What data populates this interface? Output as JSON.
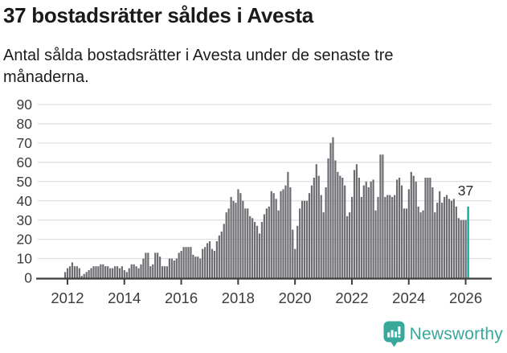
{
  "header": {
    "title": "37 bostadsrätter såldes i Avesta",
    "subtitle": "Antal sålda bostadsrätter i Avesta under de senaste tre månaderna."
  },
  "chart_data": {
    "type": "bar",
    "title": "37 bostadsrätter såldes i Avesta",
    "xlabel": "",
    "ylabel": "",
    "start_month": "2011-12",
    "end_month": "2026-02",
    "frequency": "monthly (rolling 3-month sales count)",
    "values": [
      3,
      5,
      6,
      8,
      6,
      6,
      5,
      1,
      2,
      3,
      4,
      5,
      6,
      6,
      6,
      7,
      7,
      6,
      6,
      5,
      5,
      6,
      6,
      5,
      6,
      4,
      3,
      5,
      7,
      7,
      6,
      5,
      7,
      10,
      13,
      13,
      6,
      7,
      13,
      13,
      11,
      6,
      6,
      6,
      10,
      10,
      9,
      10,
      13,
      14,
      16,
      16,
      16,
      16,
      12,
      11,
      11,
      10,
      15,
      16,
      18,
      19,
      15,
      14,
      19,
      22,
      24,
      28,
      34,
      36,
      42,
      40,
      39,
      46,
      44,
      40,
      36,
      36,
      32,
      31,
      29,
      27,
      23,
      29,
      33,
      36,
      37,
      45,
      44,
      41,
      35,
      45,
      46,
      48,
      55,
      47,
      25,
      15,
      27,
      36,
      40,
      40,
      40,
      44,
      48,
      52,
      59,
      53,
      43,
      34,
      47,
      62,
      70,
      73,
      61,
      55,
      53,
      52,
      48,
      32,
      34,
      42,
      56,
      59,
      52,
      42,
      48,
      50,
      47,
      50,
      51,
      35,
      42,
      64,
      64,
      42,
      43,
      43,
      42,
      43,
      51,
      52,
      48,
      36,
      36,
      46,
      55,
      53,
      50,
      37,
      34,
      35,
      52,
      52,
      52,
      47,
      34,
      39,
      45,
      39,
      42,
      43,
      41,
      40,
      41,
      37,
      31,
      30,
      30,
      30,
      37
    ],
    "highlight_last": true,
    "highlight_value": 37,
    "annotation": "37",
    "bar_color": "#6c6c71",
    "highlight_color": "#00a29a",
    "grid": true,
    "legend": false,
    "ylim": [
      0,
      90
    ],
    "yticks": [
      0,
      10,
      20,
      30,
      40,
      50,
      60,
      70,
      80,
      90
    ],
    "xtick_labels": [
      "2012",
      "2014",
      "2016",
      "2018",
      "2020",
      "2022",
      "2024",
      "2026"
    ]
  },
  "footer": {
    "brand": "Newsworthy",
    "brand_color": "#3aa79b",
    "logo_icon": "newsworthy-speech-bubble-chart-icon"
  }
}
